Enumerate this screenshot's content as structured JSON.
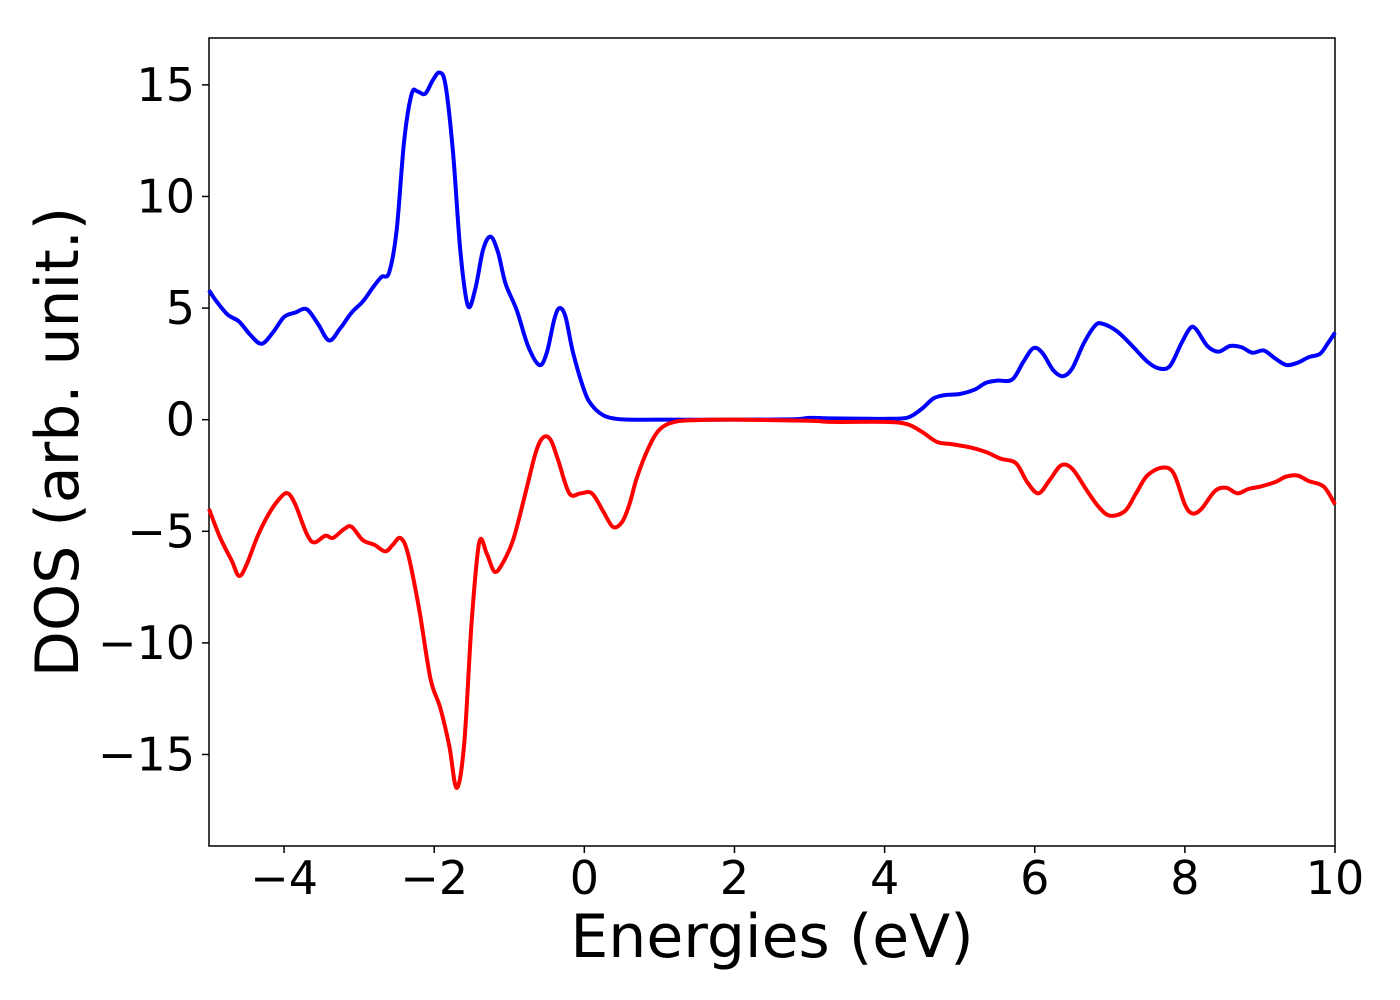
{
  "chart_data": {
    "type": "line",
    "title": "",
    "xlabel": "Energies (eV)",
    "ylabel": "DOS (arb. unit.)",
    "xlim": [
      -5,
      10
    ],
    "ylim": [
      -19.1,
      17.1
    ],
    "grid": false,
    "legend": "none",
    "x_ticks": [
      -4,
      -2,
      0,
      2,
      4,
      6,
      8,
      10
    ],
    "x_tick_labels": [
      "−4",
      "−2",
      "0",
      "2",
      "4",
      "6",
      "8",
      "10"
    ],
    "y_ticks": [
      15,
      10,
      5,
      0,
      -5,
      -10,
      -15
    ],
    "y_tick_labels": [
      "15",
      "10",
      "5",
      "0",
      "−5",
      "−10",
      "−15"
    ],
    "series": [
      {
        "color": "#0000ff",
        "points": [
          [
            -5.0,
            5.8
          ],
          [
            -4.9,
            5.3
          ],
          [
            -4.75,
            4.7
          ],
          [
            -4.6,
            4.4
          ],
          [
            -4.45,
            3.8
          ],
          [
            -4.3,
            3.4
          ],
          [
            -4.15,
            3.9
          ],
          [
            -4.0,
            4.6
          ],
          [
            -3.85,
            4.8
          ],
          [
            -3.7,
            4.95
          ],
          [
            -3.55,
            4.3
          ],
          [
            -3.4,
            3.55
          ],
          [
            -3.25,
            4.1
          ],
          [
            -3.1,
            4.8
          ],
          [
            -2.95,
            5.3
          ],
          [
            -2.8,
            6.0
          ],
          [
            -2.7,
            6.4
          ],
          [
            -2.6,
            6.6
          ],
          [
            -2.5,
            8.5
          ],
          [
            -2.4,
            12.5
          ],
          [
            -2.3,
            14.6
          ],
          [
            -2.22,
            14.7
          ],
          [
            -2.12,
            14.6
          ],
          [
            -2.02,
            15.2
          ],
          [
            -1.93,
            15.55
          ],
          [
            -1.85,
            15.0
          ],
          [
            -1.75,
            12.0
          ],
          [
            -1.65,
            7.5
          ],
          [
            -1.55,
            5.1
          ],
          [
            -1.45,
            5.9
          ],
          [
            -1.35,
            7.6
          ],
          [
            -1.25,
            8.2
          ],
          [
            -1.15,
            7.5
          ],
          [
            -1.05,
            6.1
          ],
          [
            -0.9,
            4.9
          ],
          [
            -0.75,
            3.3
          ],
          [
            -0.6,
            2.45
          ],
          [
            -0.5,
            3.0
          ],
          [
            -0.4,
            4.5
          ],
          [
            -0.33,
            5.0
          ],
          [
            -0.25,
            4.6
          ],
          [
            -0.15,
            3.0
          ],
          [
            0.0,
            1.3
          ],
          [
            0.1,
            0.65
          ],
          [
            0.25,
            0.2
          ],
          [
            0.4,
            0.05
          ],
          [
            0.6,
            0.0
          ],
          [
            1.0,
            0.0
          ],
          [
            2.0,
            0.0
          ],
          [
            2.8,
            0.02
          ],
          [
            3.0,
            0.08
          ],
          [
            3.3,
            0.06
          ],
          [
            3.8,
            0.04
          ],
          [
            4.2,
            0.05
          ],
          [
            4.35,
            0.15
          ],
          [
            4.5,
            0.5
          ],
          [
            4.65,
            0.95
          ],
          [
            4.8,
            1.1
          ],
          [
            5.0,
            1.15
          ],
          [
            5.2,
            1.35
          ],
          [
            5.35,
            1.65
          ],
          [
            5.5,
            1.75
          ],
          [
            5.7,
            1.8
          ],
          [
            5.85,
            2.6
          ],
          [
            5.98,
            3.2
          ],
          [
            6.1,
            3.0
          ],
          [
            6.25,
            2.2
          ],
          [
            6.38,
            1.95
          ],
          [
            6.5,
            2.3
          ],
          [
            6.65,
            3.4
          ],
          [
            6.8,
            4.2
          ],
          [
            6.9,
            4.3
          ],
          [
            7.1,
            3.95
          ],
          [
            7.3,
            3.3
          ],
          [
            7.5,
            2.6
          ],
          [
            7.65,
            2.3
          ],
          [
            7.8,
            2.4
          ],
          [
            7.95,
            3.4
          ],
          [
            8.07,
            4.1
          ],
          [
            8.15,
            4.05
          ],
          [
            8.3,
            3.3
          ],
          [
            8.45,
            3.05
          ],
          [
            8.6,
            3.3
          ],
          [
            8.75,
            3.25
          ],
          [
            8.9,
            3.0
          ],
          [
            9.05,
            3.1
          ],
          [
            9.2,
            2.75
          ],
          [
            9.35,
            2.45
          ],
          [
            9.5,
            2.55
          ],
          [
            9.65,
            2.8
          ],
          [
            9.8,
            2.95
          ],
          [
            9.9,
            3.4
          ],
          [
            10.0,
            3.9
          ]
        ]
      },
      {
        "color": "#ff0000",
        "points": [
          [
            -5.0,
            -4.0
          ],
          [
            -4.85,
            -5.3
          ],
          [
            -4.7,
            -6.3
          ],
          [
            -4.6,
            -7.0
          ],
          [
            -4.5,
            -6.5
          ],
          [
            -4.35,
            -5.2
          ],
          [
            -4.2,
            -4.2
          ],
          [
            -4.05,
            -3.5
          ],
          [
            -3.95,
            -3.3
          ],
          [
            -3.85,
            -3.8
          ],
          [
            -3.7,
            -5.1
          ],
          [
            -3.6,
            -5.5
          ],
          [
            -3.45,
            -5.2
          ],
          [
            -3.35,
            -5.3
          ],
          [
            -3.2,
            -4.9
          ],
          [
            -3.1,
            -4.8
          ],
          [
            -2.95,
            -5.4
          ],
          [
            -2.8,
            -5.6
          ],
          [
            -2.65,
            -5.9
          ],
          [
            -2.55,
            -5.6
          ],
          [
            -2.45,
            -5.3
          ],
          [
            -2.35,
            -6.0
          ],
          [
            -2.2,
            -8.5
          ],
          [
            -2.05,
            -11.6
          ],
          [
            -1.92,
            -12.9
          ],
          [
            -1.8,
            -14.6
          ],
          [
            -1.7,
            -16.5
          ],
          [
            -1.6,
            -14.5
          ],
          [
            -1.5,
            -9.0
          ],
          [
            -1.4,
            -5.5
          ],
          [
            -1.3,
            -6.0
          ],
          [
            -1.2,
            -6.8
          ],
          [
            -1.1,
            -6.5
          ],
          [
            -0.95,
            -5.4
          ],
          [
            -0.8,
            -3.5
          ],
          [
            -0.65,
            -1.5
          ],
          [
            -0.55,
            -0.8
          ],
          [
            -0.45,
            -0.9
          ],
          [
            -0.35,
            -1.8
          ],
          [
            -0.2,
            -3.3
          ],
          [
            -0.05,
            -3.3
          ],
          [
            0.1,
            -3.3
          ],
          [
            0.25,
            -4.1
          ],
          [
            0.38,
            -4.8
          ],
          [
            0.5,
            -4.6
          ],
          [
            0.6,
            -3.8
          ],
          [
            0.7,
            -2.6
          ],
          [
            0.85,
            -1.3
          ],
          [
            1.0,
            -0.45
          ],
          [
            1.2,
            -0.1
          ],
          [
            1.5,
            -0.02
          ],
          [
            2.0,
            0.0
          ],
          [
            3.0,
            -0.05
          ],
          [
            3.3,
            -0.1
          ],
          [
            4.0,
            -0.1
          ],
          [
            4.3,
            -0.2
          ],
          [
            4.5,
            -0.55
          ],
          [
            4.7,
            -1.0
          ],
          [
            4.9,
            -1.1
          ],
          [
            5.15,
            -1.25
          ],
          [
            5.35,
            -1.45
          ],
          [
            5.55,
            -1.75
          ],
          [
            5.75,
            -1.95
          ],
          [
            5.9,
            -2.8
          ],
          [
            6.05,
            -3.3
          ],
          [
            6.2,
            -2.7
          ],
          [
            6.35,
            -2.05
          ],
          [
            6.5,
            -2.2
          ],
          [
            6.7,
            -3.2
          ],
          [
            6.85,
            -3.9
          ],
          [
            7.0,
            -4.3
          ],
          [
            7.2,
            -4.1
          ],
          [
            7.35,
            -3.3
          ],
          [
            7.5,
            -2.5
          ],
          [
            7.7,
            -2.15
          ],
          [
            7.85,
            -2.4
          ],
          [
            8.0,
            -3.8
          ],
          [
            8.1,
            -4.2
          ],
          [
            8.22,
            -4.0
          ],
          [
            8.4,
            -3.2
          ],
          [
            8.55,
            -3.05
          ],
          [
            8.7,
            -3.3
          ],
          [
            8.85,
            -3.1
          ],
          [
            9.0,
            -3.0
          ],
          [
            9.2,
            -2.8
          ],
          [
            9.35,
            -2.55
          ],
          [
            9.5,
            -2.5
          ],
          [
            9.65,
            -2.75
          ],
          [
            9.85,
            -3.0
          ],
          [
            10.0,
            -3.8
          ]
        ]
      }
    ]
  }
}
